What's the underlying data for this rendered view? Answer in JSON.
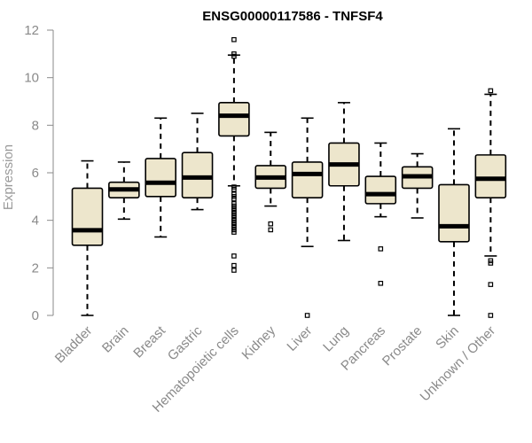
{
  "chart_data": {
    "type": "box",
    "title": "ENSG00000117586 - TNFSF4",
    "xlabel": "",
    "ylabel": "Expression",
    "ylim": [
      0,
      12
    ],
    "yticks": [
      0,
      2,
      4,
      6,
      8,
      10,
      12
    ],
    "grid": false,
    "box_fill": "#ede6cc",
    "categories": [
      "Bladder",
      "Brain",
      "Breast",
      "Gastric",
      "Hematopoietic cells",
      "Kidney",
      "Liver",
      "Lung",
      "Pancreas",
      "Prostate",
      "Skin",
      "Unknown / Other"
    ],
    "boxes": [
      {
        "whisker_low": 0.0,
        "q1": 2.95,
        "median": 3.58,
        "q3": 5.35,
        "whisker_high": 6.5,
        "outliers": []
      },
      {
        "whisker_low": 4.05,
        "q1": 4.95,
        "median": 5.3,
        "q3": 5.6,
        "whisker_high": 6.45,
        "outliers": []
      },
      {
        "whisker_low": 3.3,
        "q1": 5.0,
        "median": 5.58,
        "q3": 6.6,
        "whisker_high": 8.3,
        "outliers": []
      },
      {
        "whisker_low": 4.45,
        "q1": 4.95,
        "median": 5.8,
        "q3": 6.85,
        "whisker_high": 8.5,
        "outliers": []
      },
      {
        "whisker_low": 5.45,
        "q1": 7.55,
        "median": 8.4,
        "q3": 8.95,
        "whisker_high": 10.95,
        "outliers": [
          11.6,
          11.0,
          10.9,
          5.4,
          5.3,
          5.1,
          5.0,
          4.9,
          4.7,
          4.6,
          4.5,
          4.4,
          4.3,
          4.2,
          4.1,
          4.0,
          3.9,
          3.8,
          3.7,
          3.6,
          3.5,
          2.5,
          2.1,
          1.9
        ]
      },
      {
        "whisker_low": 4.6,
        "q1": 5.35,
        "median": 5.8,
        "q3": 6.3,
        "whisker_high": 7.7,
        "outliers": [
          3.85,
          3.6
        ]
      },
      {
        "whisker_low": 2.9,
        "q1": 4.95,
        "median": 5.95,
        "q3": 6.45,
        "whisker_high": 8.3,
        "outliers": [
          0.0
        ]
      },
      {
        "whisker_low": 3.15,
        "q1": 5.45,
        "median": 6.35,
        "q3": 7.25,
        "whisker_high": 8.95,
        "outliers": []
      },
      {
        "whisker_low": 4.15,
        "q1": 4.7,
        "median": 5.1,
        "q3": 5.85,
        "whisker_high": 7.25,
        "outliers": [
          2.8,
          1.35
        ]
      },
      {
        "whisker_low": 4.1,
        "q1": 5.35,
        "median": 5.85,
        "q3": 6.25,
        "whisker_high": 6.8,
        "outliers": []
      },
      {
        "whisker_low": 0.0,
        "q1": 3.1,
        "median": 3.75,
        "q3": 5.5,
        "whisker_high": 7.85,
        "outliers": []
      },
      {
        "whisker_low": 2.5,
        "q1": 4.95,
        "median": 5.75,
        "q3": 6.75,
        "whisker_high": 9.3,
        "outliers": [
          9.45,
          2.3,
          2.2,
          1.3,
          0.0
        ]
      }
    ]
  }
}
